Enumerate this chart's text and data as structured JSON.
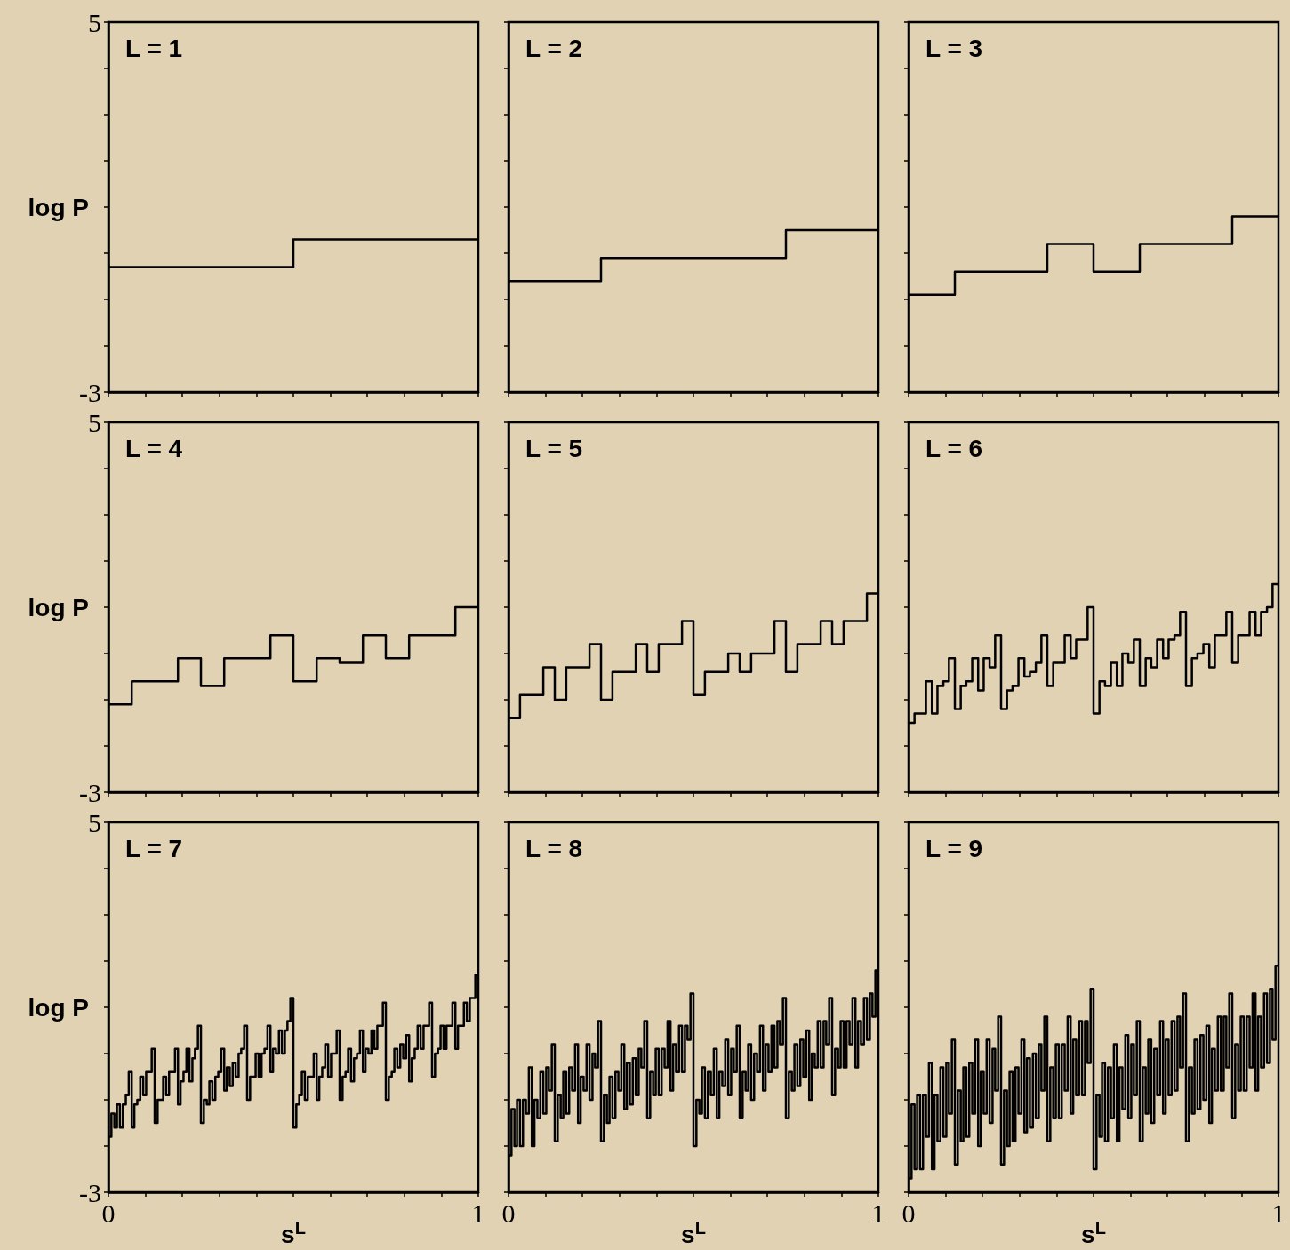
{
  "chart_data": [
    {
      "type": "step",
      "title": "L = 1",
      "ylabel": "log P",
      "color": "#000000",
      "marker": "none",
      "tick_labels": "y",
      "xlim": [
        0,
        1
      ],
      "ylim": [
        -3,
        5
      ],
      "xticks": [
        {
          "value": 0,
          "label": null
        },
        {
          "value": 0.1,
          "label": null
        },
        {
          "value": 0.2,
          "label": null
        },
        {
          "value": 0.3,
          "label": null
        },
        {
          "value": 0.4,
          "label": null
        },
        {
          "value": 0.5,
          "label": null
        },
        {
          "value": 0.6,
          "label": null
        },
        {
          "value": 0.7,
          "label": null
        },
        {
          "value": 0.8,
          "label": null
        },
        {
          "value": 0.9,
          "label": null
        },
        {
          "value": 1,
          "label": null
        }
      ],
      "yticks": [
        {
          "value": -3,
          "label": "-3"
        },
        {
          "value": -2,
          "label": null
        },
        {
          "value": -1,
          "label": null
        },
        {
          "value": 0,
          "label": null
        },
        {
          "value": 1,
          "label": null
        },
        {
          "value": 2,
          "label": null
        },
        {
          "value": 3,
          "label": null
        },
        {
          "value": 4,
          "label": null
        },
        {
          "value": 5,
          "label": "5"
        }
      ],
      "x": [
        0,
        0.5,
        1
      ],
      "values": [
        -0.3,
        0.3,
        0.3
      ]
    },
    {
      "type": "step",
      "title": "L = 2",
      "color": "#000000",
      "marker": "none",
      "tick_labels": false,
      "xlim": [
        0,
        1
      ],
      "ylim": [
        -3,
        5
      ],
      "xticks": [
        {
          "value": 0,
          "label": null
        },
        {
          "value": 0.1,
          "label": null
        },
        {
          "value": 0.2,
          "label": null
        },
        {
          "value": 0.3,
          "label": null
        },
        {
          "value": 0.4,
          "label": null
        },
        {
          "value": 0.5,
          "label": null
        },
        {
          "value": 0.6,
          "label": null
        },
        {
          "value": 0.7,
          "label": null
        },
        {
          "value": 0.8,
          "label": null
        },
        {
          "value": 0.9,
          "label": null
        },
        {
          "value": 1,
          "label": null
        }
      ],
      "yticks": [
        {
          "value": -3,
          "label": null
        },
        {
          "value": -2,
          "label": null
        },
        {
          "value": -1,
          "label": null
        },
        {
          "value": 0,
          "label": null
        },
        {
          "value": 1,
          "label": null
        },
        {
          "value": 2,
          "label": null
        },
        {
          "value": 3,
          "label": null
        },
        {
          "value": 4,
          "label": null
        },
        {
          "value": 5,
          "label": null
        }
      ],
      "x": [
        0,
        0.25,
        0.5,
        0.75,
        1
      ],
      "values": [
        -0.6,
        -0.1,
        -0.1,
        0.5,
        0.5
      ]
    },
    {
      "type": "step",
      "title": "L = 3",
      "color": "#000000",
      "marker": "none",
      "tick_labels": false,
      "xlim": [
        0,
        1
      ],
      "ylim": [
        -3,
        5
      ],
      "xticks": [
        {
          "value": 0,
          "label": null
        },
        {
          "value": 0.1,
          "label": null
        },
        {
          "value": 0.2,
          "label": null
        },
        {
          "value": 0.3,
          "label": null
        },
        {
          "value": 0.4,
          "label": null
        },
        {
          "value": 0.5,
          "label": null
        },
        {
          "value": 0.6,
          "label": null
        },
        {
          "value": 0.7,
          "label": null
        },
        {
          "value": 0.8,
          "label": null
        },
        {
          "value": 0.9,
          "label": null
        },
        {
          "value": 1,
          "label": null
        }
      ],
      "yticks": [
        {
          "value": -3,
          "label": null
        },
        {
          "value": -2,
          "label": null
        },
        {
          "value": -1,
          "label": null
        },
        {
          "value": 0,
          "label": null
        },
        {
          "value": 1,
          "label": null
        },
        {
          "value": 2,
          "label": null
        },
        {
          "value": 3,
          "label": null
        },
        {
          "value": 4,
          "label": null
        },
        {
          "value": 5,
          "label": null
        }
      ],
      "x": [
        0,
        0.125,
        0.25,
        0.375,
        0.5,
        0.625,
        0.75,
        0.875,
        1
      ],
      "values": [
        -0.9,
        -0.4,
        -0.4,
        0.2,
        -0.4,
        0.2,
        0.2,
        0.8,
        0.8
      ]
    },
    {
      "type": "step",
      "title": "L = 4",
      "ylabel": "log P",
      "color": "#000000",
      "marker": "none",
      "tick_labels": "y",
      "xlim": [
        0,
        1
      ],
      "ylim": [
        -3,
        5
      ],
      "xticks": [
        {
          "value": 0,
          "label": null
        },
        {
          "value": 0.1,
          "label": null
        },
        {
          "value": 0.2,
          "label": null
        },
        {
          "value": 0.3,
          "label": null
        },
        {
          "value": 0.4,
          "label": null
        },
        {
          "value": 0.5,
          "label": null
        },
        {
          "value": 0.6,
          "label": null
        },
        {
          "value": 0.7,
          "label": null
        },
        {
          "value": 0.8,
          "label": null
        },
        {
          "value": 0.9,
          "label": null
        },
        {
          "value": 1,
          "label": null
        }
      ],
      "yticks": [
        {
          "value": -3,
          "label": "-3"
        },
        {
          "value": -2,
          "label": null
        },
        {
          "value": -1,
          "label": null
        },
        {
          "value": 0,
          "label": null
        },
        {
          "value": 1,
          "label": null
        },
        {
          "value": 2,
          "label": null
        },
        {
          "value": 3,
          "label": null
        },
        {
          "value": 4,
          "label": null
        },
        {
          "value": 5,
          "label": "5"
        }
      ],
      "x": [
        0,
        0.063,
        0.125,
        0.188,
        0.25,
        0.313,
        0.375,
        0.438,
        0.5,
        0.563,
        0.625,
        0.688,
        0.75,
        0.813,
        0.875,
        0.938,
        1
      ],
      "values": [
        -1.1,
        -0.6,
        -0.6,
        -0.1,
        -0.7,
        -0.1,
        -0.1,
        0.4,
        -0.6,
        -0.1,
        -0.2,
        0.4,
        -0.1,
        0.4,
        0.4,
        1.0,
        1.0
      ]
    },
    {
      "type": "step",
      "title": "L = 5",
      "color": "#000000",
      "marker": "none",
      "tick_labels": false,
      "xlim": [
        0,
        1
      ],
      "ylim": [
        -3,
        5
      ],
      "xticks": [
        {
          "value": 0,
          "label": null
        },
        {
          "value": 0.1,
          "label": null
        },
        {
          "value": 0.2,
          "label": null
        },
        {
          "value": 0.3,
          "label": null
        },
        {
          "value": 0.4,
          "label": null
        },
        {
          "value": 0.5,
          "label": null
        },
        {
          "value": 0.6,
          "label": null
        },
        {
          "value": 0.7,
          "label": null
        },
        {
          "value": 0.8,
          "label": null
        },
        {
          "value": 0.9,
          "label": null
        },
        {
          "value": 1,
          "label": null
        }
      ],
      "yticks": [
        {
          "value": -3,
          "label": null
        },
        {
          "value": -2,
          "label": null
        },
        {
          "value": -1,
          "label": null
        },
        {
          "value": 0,
          "label": null
        },
        {
          "value": 1,
          "label": null
        },
        {
          "value": 2,
          "label": null
        },
        {
          "value": 3,
          "label": null
        },
        {
          "value": 4,
          "label": null
        },
        {
          "value": 5,
          "label": null
        }
      ],
      "x": [
        0,
        0.031,
        0.063,
        0.094,
        0.125,
        0.156,
        0.188,
        0.219,
        0.25,
        0.281,
        0.313,
        0.344,
        0.375,
        0.406,
        0.438,
        0.469,
        0.5,
        0.531,
        0.563,
        0.594,
        0.625,
        0.656,
        0.688,
        0.719,
        0.75,
        0.781,
        0.813,
        0.844,
        0.875,
        0.906,
        0.938,
        0.969,
        1
      ],
      "values": [
        -1.4,
        -0.9,
        -0.9,
        -0.3,
        -1.0,
        -0.3,
        -0.3,
        0.2,
        -1.0,
        -0.4,
        -0.4,
        0.2,
        -0.4,
        0.2,
        0.2,
        0.7,
        -0.9,
        -0.4,
        -0.4,
        0.0,
        -0.4,
        0.0,
        0.0,
        0.7,
        -0.4,
        0.2,
        0.2,
        0.7,
        0.2,
        0.7,
        0.7,
        1.3,
        1.3
      ]
    },
    {
      "type": "step",
      "title": "L = 6",
      "color": "#000000",
      "marker": "none",
      "tick_labels": false,
      "xlim": [
        0,
        1
      ],
      "ylim": [
        -3,
        5
      ],
      "xticks": [
        {
          "value": 0,
          "label": null
        },
        {
          "value": 0.1,
          "label": null
        },
        {
          "value": 0.2,
          "label": null
        },
        {
          "value": 0.3,
          "label": null
        },
        {
          "value": 0.4,
          "label": null
        },
        {
          "value": 0.5,
          "label": null
        },
        {
          "value": 0.6,
          "label": null
        },
        {
          "value": 0.7,
          "label": null
        },
        {
          "value": 0.8,
          "label": null
        },
        {
          "value": 0.9,
          "label": null
        },
        {
          "value": 1,
          "label": null
        }
      ],
      "yticks": [
        {
          "value": -3,
          "label": null
        },
        {
          "value": -2,
          "label": null
        },
        {
          "value": -1,
          "label": null
        },
        {
          "value": 0,
          "label": null
        },
        {
          "value": 1,
          "label": null
        },
        {
          "value": 2,
          "label": null
        },
        {
          "value": 3,
          "label": null
        },
        {
          "value": 4,
          "label": null
        },
        {
          "value": 5,
          "label": null
        }
      ],
      "x": [
        0,
        0.016,
        0.031,
        0.047,
        0.063,
        0.078,
        0.094,
        0.109,
        0.125,
        0.141,
        0.156,
        0.172,
        0.188,
        0.203,
        0.219,
        0.234,
        0.25,
        0.266,
        0.281,
        0.297,
        0.313,
        0.328,
        0.344,
        0.359,
        0.375,
        0.391,
        0.406,
        0.422,
        0.438,
        0.453,
        0.469,
        0.484,
        0.5,
        0.516,
        0.531,
        0.547,
        0.563,
        0.578,
        0.594,
        0.609,
        0.625,
        0.641,
        0.656,
        0.672,
        0.688,
        0.703,
        0.719,
        0.734,
        0.75,
        0.766,
        0.781,
        0.797,
        0.813,
        0.828,
        0.844,
        0.859,
        0.875,
        0.891,
        0.906,
        0.922,
        0.938,
        0.953,
        0.969,
        0.984,
        1
      ],
      "values": [
        -1.5,
        -1.3,
        -1.3,
        -0.6,
        -1.3,
        -0.7,
        -0.6,
        -0.1,
        -1.2,
        -0.7,
        -0.6,
        -0.1,
        -0.8,
        -0.1,
        -0.3,
        0.4,
        -1.2,
        -0.8,
        -0.7,
        -0.1,
        -0.5,
        -0.4,
        -0.2,
        0.4,
        -0.7,
        -0.2,
        -0.2,
        0.4,
        -0.1,
        0.3,
        0.3,
        1.0,
        -1.3,
        -0.6,
        -0.7,
        -0.2,
        -0.7,
        0.0,
        -0.2,
        0.3,
        -0.7,
        -0.1,
        -0.3,
        0.3,
        -0.1,
        0.3,
        0.4,
        0.9,
        -0.7,
        -0.1,
        0.0,
        0.2,
        -0.3,
        0.4,
        0.4,
        0.9,
        -0.2,
        0.4,
        0.4,
        0.9,
        0.4,
        0.9,
        1.0,
        1.5,
        1.5
      ]
    },
    {
      "type": "step",
      "title": "L = 7",
      "ylabel": "log P",
      "xlabel": "s$^{L}$",
      "color": "#000000",
      "marker": "none",
      "xlim": [
        0,
        1
      ],
      "ylim": [
        -3,
        5
      ],
      "xticks": [
        {
          "value": 0,
          "label": "0"
        },
        {
          "value": 0.1,
          "label": null
        },
        {
          "value": 0.2,
          "label": null
        },
        {
          "value": 0.3,
          "label": null
        },
        {
          "value": 0.4,
          "label": null
        },
        {
          "value": 0.5,
          "label": null
        },
        {
          "value": 0.6,
          "label": null
        },
        {
          "value": 0.7,
          "label": null
        },
        {
          "value": 0.8,
          "label": null
        },
        {
          "value": 0.9,
          "label": null
        },
        {
          "value": 1,
          "label": "1"
        }
      ],
      "yticks": [
        {
          "value": -3,
          "label": "-3"
        },
        {
          "value": -2,
          "label": null
        },
        {
          "value": -1,
          "label": null
        },
        {
          "value": 0,
          "label": null
        },
        {
          "value": 1,
          "label": null
        },
        {
          "value": 2,
          "label": null
        },
        {
          "value": 3,
          "label": null
        },
        {
          "value": 4,
          "label": null
        },
        {
          "value": 5,
          "label": "5"
        }
      ],
      "x": [
        0,
        0.008,
        0.016,
        0.023,
        0.031,
        0.039,
        0.047,
        0.055,
        0.063,
        0.07,
        0.078,
        0.086,
        0.094,
        0.102,
        0.109,
        0.117,
        0.125,
        0.133,
        0.141,
        0.148,
        0.156,
        0.164,
        0.172,
        0.18,
        0.188,
        0.195,
        0.203,
        0.211,
        0.219,
        0.227,
        0.234,
        0.242,
        0.25,
        0.258,
        0.266,
        0.273,
        0.281,
        0.289,
        0.297,
        0.305,
        0.313,
        0.32,
        0.328,
        0.336,
        0.344,
        0.352,
        0.359,
        0.367,
        0.375,
        0.383,
        0.391,
        0.398,
        0.406,
        0.414,
        0.422,
        0.43,
        0.438,
        0.445,
        0.453,
        0.461,
        0.469,
        0.477,
        0.484,
        0.492,
        0.5,
        0.508,
        0.516,
        0.523,
        0.531,
        0.539,
        0.547,
        0.555,
        0.563,
        0.57,
        0.578,
        0.586,
        0.594,
        0.602,
        0.609,
        0.617,
        0.625,
        0.633,
        0.641,
        0.648,
        0.656,
        0.664,
        0.672,
        0.68,
        0.688,
        0.695,
        0.703,
        0.711,
        0.719,
        0.727,
        0.734,
        0.742,
        0.75,
        0.758,
        0.766,
        0.773,
        0.781,
        0.789,
        0.797,
        0.805,
        0.813,
        0.82,
        0.828,
        0.836,
        0.844,
        0.852,
        0.859,
        0.867,
        0.875,
        0.883,
        0.891,
        0.898,
        0.906,
        0.914,
        0.922,
        0.93,
        0.938,
        0.945,
        0.953,
        0.961,
        0.969,
        0.977,
        0.984,
        0.992,
        1
      ],
      "values": [
        -1.8,
        -1.3,
        -1.6,
        -1.1,
        -1.6,
        -1.1,
        -0.9,
        -0.4,
        -1.6,
        -1.1,
        -1.0,
        -0.5,
        -0.9,
        -0.4,
        -0.4,
        0.1,
        -1.5,
        -1.0,
        -1.0,
        -0.5,
        -0.9,
        -0.4,
        -0.4,
        0.1,
        -1.1,
        -0.6,
        -0.4,
        0.1,
        -0.6,
        -0.1,
        0.1,
        0.6,
        -1.5,
        -1.0,
        -1.1,
        -0.6,
        -1.0,
        -0.5,
        -0.4,
        0.1,
        -0.8,
        -0.3,
        -0.7,
        -0.2,
        -0.5,
        0.0,
        0.1,
        0.6,
        -1.0,
        -0.5,
        -0.5,
        0.0,
        -0.5,
        0.0,
        0.1,
        0.6,
        -0.4,
        0.1,
        0.0,
        0.5,
        0.0,
        0.5,
        0.7,
        1.2,
        -1.6,
        -1.1,
        -0.9,
        -0.4,
        -1.0,
        -0.5,
        -0.5,
        0.0,
        -1.0,
        -0.5,
        -0.3,
        0.2,
        -0.5,
        0.0,
        0.0,
        0.5,
        -1.0,
        -0.5,
        -0.4,
        0.1,
        -0.6,
        -0.1,
        0.0,
        0.5,
        -0.4,
        0.1,
        0.0,
        0.5,
        0.1,
        0.6,
        0.6,
        1.1,
        -1.0,
        -0.5,
        -0.4,
        0.1,
        -0.3,
        0.2,
        -0.1,
        0.4,
        -0.6,
        -0.1,
        0.1,
        0.6,
        0.1,
        0.6,
        0.6,
        1.1,
        -0.5,
        0.0,
        0.1,
        0.6,
        0.1,
        0.6,
        0.6,
        1.1,
        0.1,
        0.6,
        0.6,
        1.1,
        0.7,
        1.2,
        1.2,
        1.7,
        1.7
      ]
    },
    {
      "type": "step",
      "title": "L = 8",
      "xlabel": "s$^{L}$",
      "color": "#000000",
      "marker": "none",
      "tick_labels": "x",
      "xlim": [
        0,
        1
      ],
      "ylim": [
        -3,
        5
      ],
      "xticks": [
        {
          "value": 0,
          "label": "0"
        },
        {
          "value": 0.1,
          "label": null
        },
        {
          "value": 0.2,
          "label": null
        },
        {
          "value": 0.3,
          "label": null
        },
        {
          "value": 0.4,
          "label": null
        },
        {
          "value": 0.5,
          "label": null
        },
        {
          "value": 0.6,
          "label": null
        },
        {
          "value": 0.7,
          "label": null
        },
        {
          "value": 0.8,
          "label": null
        },
        {
          "value": 0.9,
          "label": null
        },
        {
          "value": 1,
          "label": "1"
        }
      ],
      "yticks": [
        {
          "value": -3,
          "label": null
        },
        {
          "value": -2,
          "label": null
        },
        {
          "value": -1,
          "label": null
        },
        {
          "value": 0,
          "label": null
        },
        {
          "value": 1,
          "label": null
        },
        {
          "value": 2,
          "label": null
        },
        {
          "value": 3,
          "label": null
        },
        {
          "value": 4,
          "label": null
        },
        {
          "value": 5,
          "label": null
        }
      ],
      "x": [
        0,
        0.008,
        0.016,
        0.023,
        0.031,
        0.039,
        0.047,
        0.055,
        0.063,
        0.07,
        0.078,
        0.086,
        0.094,
        0.102,
        0.109,
        0.117,
        0.125,
        0.133,
        0.141,
        0.148,
        0.156,
        0.164,
        0.172,
        0.18,
        0.188,
        0.195,
        0.203,
        0.211,
        0.219,
        0.227,
        0.234,
        0.242,
        0.25,
        0.258,
        0.266,
        0.273,
        0.281,
        0.289,
        0.297,
        0.305,
        0.313,
        0.32,
        0.328,
        0.336,
        0.344,
        0.352,
        0.359,
        0.367,
        0.375,
        0.383,
        0.391,
        0.398,
        0.406,
        0.414,
        0.422,
        0.43,
        0.438,
        0.445,
        0.453,
        0.461,
        0.469,
        0.477,
        0.484,
        0.492,
        0.5,
        0.508,
        0.516,
        0.523,
        0.531,
        0.539,
        0.547,
        0.555,
        0.563,
        0.57,
        0.578,
        0.586,
        0.594,
        0.602,
        0.609,
        0.617,
        0.625,
        0.633,
        0.641,
        0.648,
        0.656,
        0.664,
        0.672,
        0.68,
        0.688,
        0.695,
        0.703,
        0.711,
        0.719,
        0.727,
        0.734,
        0.742,
        0.75,
        0.758,
        0.766,
        0.773,
        0.781,
        0.789,
        0.797,
        0.805,
        0.813,
        0.82,
        0.828,
        0.836,
        0.844,
        0.852,
        0.859,
        0.867,
        0.875,
        0.883,
        0.891,
        0.898,
        0.906,
        0.914,
        0.922,
        0.93,
        0.938,
        0.945,
        0.953,
        0.961,
        0.969,
        0.977,
        0.984,
        0.992,
        1
      ],
      "values": [
        -2.2,
        -1.2,
        -2.0,
        -1.0,
        -2.0,
        -1.0,
        -1.3,
        -0.3,
        -2.0,
        -1.0,
        -1.4,
        -0.4,
        -1.3,
        -0.3,
        -0.8,
        0.2,
        -1.9,
        -0.9,
        -1.4,
        -0.4,
        -1.3,
        -0.3,
        -0.8,
        0.2,
        -1.5,
        -0.5,
        -0.8,
        0.2,
        -1.0,
        0.0,
        -0.3,
        0.7,
        -1.9,
        -0.9,
        -1.5,
        -0.5,
        -1.4,
        -0.4,
        -0.8,
        0.2,
        -1.2,
        -0.2,
        -1.1,
        -0.1,
        -0.9,
        0.1,
        -0.3,
        0.7,
        -1.4,
        -0.4,
        -0.9,
        0.1,
        -0.9,
        0.1,
        -0.3,
        0.7,
        -0.8,
        0.2,
        -0.4,
        0.6,
        -0.4,
        0.6,
        0.3,
        1.3,
        -2.0,
        -1.0,
        -1.3,
        -0.3,
        -1.4,
        -0.4,
        -0.9,
        0.1,
        -1.4,
        -0.4,
        -0.7,
        0.3,
        -0.9,
        0.1,
        -0.4,
        0.6,
        -1.4,
        -0.4,
        -0.8,
        0.2,
        -1.0,
        0.0,
        -0.4,
        0.6,
        -0.8,
        0.2,
        -0.4,
        0.6,
        -0.3,
        0.7,
        0.2,
        1.2,
        -1.4,
        -0.4,
        -0.8,
        0.2,
        -0.7,
        0.3,
        -0.5,
        0.5,
        -1.0,
        0.0,
        -0.3,
        0.7,
        -0.3,
        0.7,
        0.2,
        1.2,
        -0.9,
        0.1,
        -0.3,
        0.7,
        -0.3,
        0.7,
        0.2,
        1.2,
        -0.3,
        0.7,
        0.2,
        1.2,
        0.3,
        1.3,
        0.8,
        1.8,
        1.8
      ]
    },
    {
      "type": "step",
      "title": "L = 9",
      "xlabel": "s$^{L}$",
      "color": "#000000",
      "marker": "none",
      "tick_labels": "x",
      "xlim": [
        0,
        1
      ],
      "ylim": [
        -3,
        5
      ],
      "xticks": [
        {
          "value": 0,
          "label": "0"
        },
        {
          "value": 0.1,
          "label": null
        },
        {
          "value": 0.2,
          "label": null
        },
        {
          "value": 0.3,
          "label": null
        },
        {
          "value": 0.4,
          "label": null
        },
        {
          "value": 0.5,
          "label": null
        },
        {
          "value": 0.6,
          "label": null
        },
        {
          "value": 0.7,
          "label": null
        },
        {
          "value": 0.8,
          "label": null
        },
        {
          "value": 0.9,
          "label": null
        },
        {
          "value": 1,
          "label": "1"
        }
      ],
      "yticks": [
        {
          "value": -3,
          "label": null
        },
        {
          "value": -2,
          "label": null
        },
        {
          "value": -1,
          "label": null
        },
        {
          "value": 0,
          "label": null
        },
        {
          "value": 1,
          "label": null
        },
        {
          "value": 2,
          "label": null
        },
        {
          "value": 3,
          "label": null
        },
        {
          "value": 4,
          "label": null
        },
        {
          "value": 5,
          "label": null
        }
      ],
      "x": [
        0,
        0.008,
        0.016,
        0.023,
        0.031,
        0.039,
        0.047,
        0.055,
        0.063,
        0.07,
        0.078,
        0.086,
        0.094,
        0.102,
        0.109,
        0.117,
        0.125,
        0.133,
        0.141,
        0.148,
        0.156,
        0.164,
        0.172,
        0.18,
        0.188,
        0.195,
        0.203,
        0.211,
        0.219,
        0.227,
        0.234,
        0.242,
        0.25,
        0.258,
        0.266,
        0.273,
        0.281,
        0.289,
        0.297,
        0.305,
        0.313,
        0.32,
        0.328,
        0.336,
        0.344,
        0.352,
        0.359,
        0.367,
        0.375,
        0.383,
        0.391,
        0.398,
        0.406,
        0.414,
        0.422,
        0.43,
        0.438,
        0.445,
        0.453,
        0.461,
        0.469,
        0.477,
        0.484,
        0.492,
        0.5,
        0.508,
        0.516,
        0.523,
        0.531,
        0.539,
        0.547,
        0.555,
        0.563,
        0.57,
        0.578,
        0.586,
        0.594,
        0.602,
        0.609,
        0.617,
        0.625,
        0.633,
        0.641,
        0.648,
        0.656,
        0.664,
        0.672,
        0.68,
        0.688,
        0.695,
        0.703,
        0.711,
        0.719,
        0.727,
        0.734,
        0.742,
        0.75,
        0.758,
        0.766,
        0.773,
        0.781,
        0.789,
        0.797,
        0.805,
        0.813,
        0.82,
        0.828,
        0.836,
        0.844,
        0.852,
        0.859,
        0.867,
        0.875,
        0.883,
        0.891,
        0.898,
        0.906,
        0.914,
        0.922,
        0.93,
        0.938,
        0.945,
        0.953,
        0.961,
        0.969,
        0.977,
        0.984,
        0.992,
        1
      ],
      "values": [
        -2.7,
        -1.1,
        -2.5,
        -0.9,
        -2.5,
        -0.9,
        -1.8,
        -0.2,
        -2.5,
        -0.9,
        -1.9,
        -0.3,
        -1.8,
        -0.2,
        -1.3,
        0.3,
        -2.4,
        -0.8,
        -1.9,
        -0.3,
        -1.8,
        -0.2,
        -1.3,
        0.3,
        -2.0,
        -0.4,
        -1.3,
        0.3,
        -1.5,
        0.1,
        -0.8,
        0.8,
        -2.4,
        -0.8,
        -2.0,
        -0.4,
        -1.9,
        -0.3,
        -1.3,
        0.3,
        -1.7,
        -0.1,
        -1.6,
        0.0,
        -1.4,
        0.2,
        -0.8,
        0.8,
        -1.9,
        -0.3,
        -1.4,
        0.2,
        -1.4,
        0.2,
        -0.8,
        0.8,
        -1.3,
        0.3,
        -0.9,
        0.7,
        -0.9,
        0.7,
        -0.2,
        1.4,
        -2.5,
        -0.9,
        -1.8,
        -0.2,
        -1.9,
        -0.3,
        -1.4,
        0.2,
        -1.9,
        -0.3,
        -1.2,
        0.4,
        -1.4,
        0.2,
        -0.9,
        0.7,
        -1.9,
        -0.3,
        -1.3,
        0.3,
        -1.5,
        0.1,
        -0.9,
        0.7,
        -1.3,
        0.3,
        -0.9,
        0.7,
        -0.8,
        0.8,
        -0.3,
        1.3,
        -1.9,
        -0.3,
        -1.3,
        0.3,
        -1.2,
        0.4,
        -1.0,
        0.6,
        -1.5,
        0.1,
        -0.8,
        0.8,
        -0.8,
        0.8,
        -0.3,
        1.3,
        -1.4,
        0.2,
        -0.8,
        0.8,
        -0.8,
        0.8,
        -0.3,
        1.3,
        -0.8,
        0.8,
        -0.3,
        1.3,
        -0.2,
        1.4,
        0.3,
        1.9,
        1.9
      ]
    }
  ]
}
